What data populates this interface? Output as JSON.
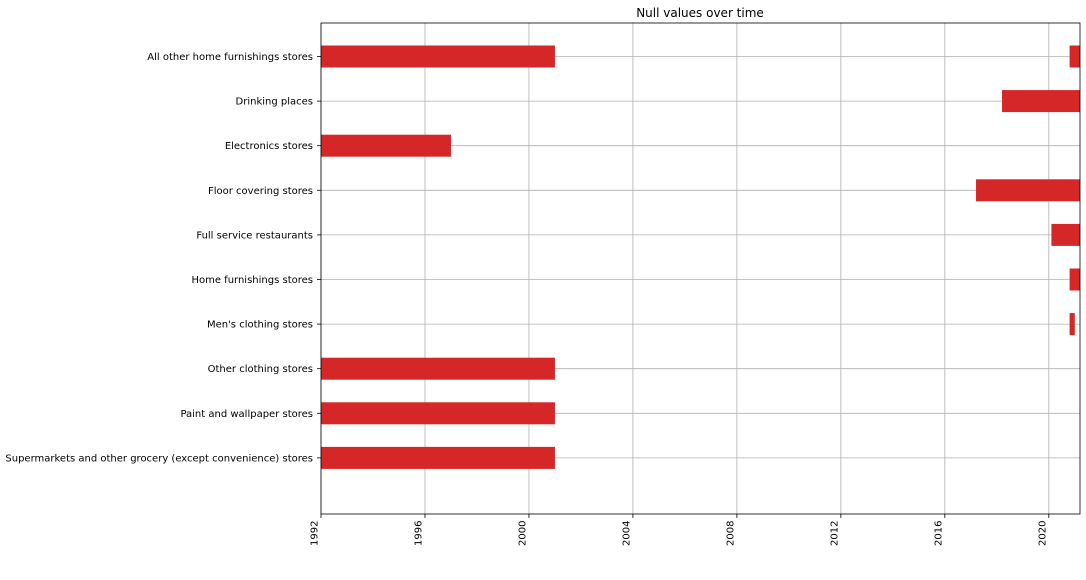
{
  "chart_data": {
    "type": "bar",
    "orientation": "horizontal-range",
    "title": "Null values over time",
    "xlabel": "",
    "ylabel": "",
    "xlim": [
      1992,
      2021.2
    ],
    "x_ticks": [
      "1992",
      "1996",
      "2000",
      "2004",
      "2008",
      "2012",
      "2016",
      "2020"
    ],
    "grid": true,
    "bar_color": "#d62728",
    "categories": [
      "All other home furnishings stores",
      "Drinking places",
      "Electronics stores",
      "Floor covering stores",
      "Full service restaurants",
      "Home furnishings stores",
      "Men's clothing stores",
      "Other clothing stores",
      "Paint and wallpaper stores",
      "Supermarkets and other grocery (except convenience) stores"
    ],
    "ranges": [
      [
        [
          1992.0,
          2001.0
        ],
        [
          2020.8,
          2021.2
        ]
      ],
      [
        [
          2018.2,
          2021.2
        ]
      ],
      [
        [
          1992.0,
          1997.0
        ]
      ],
      [
        [
          2017.2,
          2021.2
        ]
      ],
      [
        [
          2020.1,
          2021.2
        ]
      ],
      [
        [
          2020.8,
          2021.2
        ]
      ],
      [
        [
          2020.8,
          2021.0
        ]
      ],
      [
        [
          1992.0,
          2001.0
        ]
      ],
      [
        [
          1992.0,
          2001.0
        ]
      ],
      [
        [
          1992.0,
          2001.0
        ]
      ]
    ]
  }
}
